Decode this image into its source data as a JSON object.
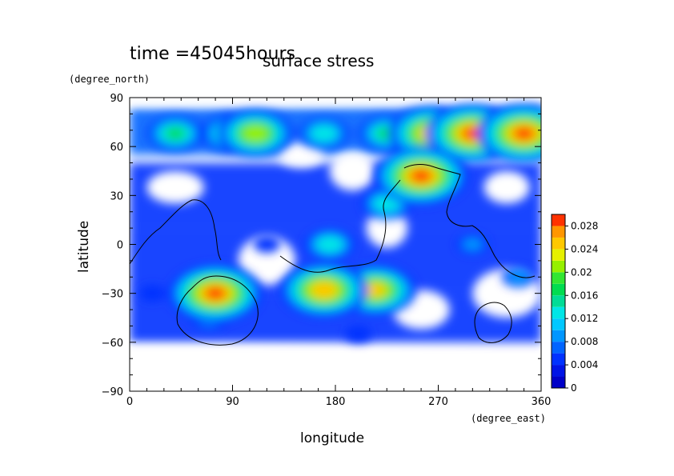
{
  "header": {
    "time_label": "time =45045hours"
  },
  "chart_data": {
    "type": "heatmap",
    "title": "surface stress",
    "xlabel": "longitude",
    "ylabel": "latitude",
    "x_units": "(degree_east)",
    "y_units": "(degree_north)",
    "xlim": [
      0,
      360
    ],
    "ylim": [
      -90,
      90
    ],
    "x_ticks": [
      0,
      90,
      180,
      270,
      360
    ],
    "y_ticks": [
      -90,
      -60,
      -30,
      0,
      30,
      60,
      90
    ],
    "x_tick_labels": [
      "0",
      "90",
      "180",
      "270",
      "360"
    ],
    "y_tick_labels": [
      "−90",
      "−60",
      "−30",
      "0",
      "30",
      "60",
      "90"
    ],
    "grid": false,
    "colorbar": {
      "placement": "right",
      "min": 0,
      "max": 0.03,
      "step": 0.002,
      "ticks": [
        0,
        0.004,
        0.008,
        0.012,
        0.016,
        0.02,
        0.024,
        0.028
      ],
      "tick_labels": [
        "0",
        "0.004",
        "0.008",
        "0.012",
        "0.016",
        "0.02",
        "0.024",
        "0.028"
      ],
      "colors": [
        "#0000c8",
        "#0014e6",
        "#0032ff",
        "#0064ff",
        "#0096ff",
        "#00c8ff",
        "#00e6e6",
        "#00dc96",
        "#00dc50",
        "#32e632",
        "#96f000",
        "#e6f000",
        "#ffc800",
        "#ff9600",
        "#ff3200"
      ]
    },
    "blobs": [
      {
        "lon": 90,
        "lat": 68,
        "value": 0.018
      },
      {
        "lon": 110,
        "lat": 68,
        "value": 0.022
      },
      {
        "lon": 40,
        "lat": 68,
        "value": 0.016
      },
      {
        "lon": 170,
        "lat": 68,
        "value": 0.014
      },
      {
        "lon": 225,
        "lat": 68,
        "value": 0.016
      },
      {
        "lon": 265,
        "lat": 68,
        "value": 0.026
      },
      {
        "lon": 300,
        "lat": 68,
        "value": 0.028
      },
      {
        "lon": 345,
        "lat": 68,
        "value": 0.028
      },
      {
        "lon": 255,
        "lat": 42,
        "value": 0.028
      },
      {
        "lon": 75,
        "lat": -30,
        "value": 0.028
      },
      {
        "lon": 170,
        "lat": -28,
        "value": 0.026
      },
      {
        "lon": 215,
        "lat": -28,
        "value": 0.024
      },
      {
        "lon": 175,
        "lat": 0,
        "value": 0.014
      },
      {
        "lon": 225,
        "lat": 25,
        "value": 0.014
      },
      {
        "lon": 70,
        "lat": -45,
        "value": 0.01
      },
      {
        "lon": 20,
        "lat": -30,
        "value": 0.006
      },
      {
        "lon": 300,
        "lat": 0,
        "value": 0.008
      },
      {
        "lon": 340,
        "lat": -20,
        "value": 0.008
      },
      {
        "lon": 120,
        "lat": 0,
        "value": 0.006
      },
      {
        "lon": 200,
        "lat": -55,
        "value": 0.006
      }
    ]
  }
}
